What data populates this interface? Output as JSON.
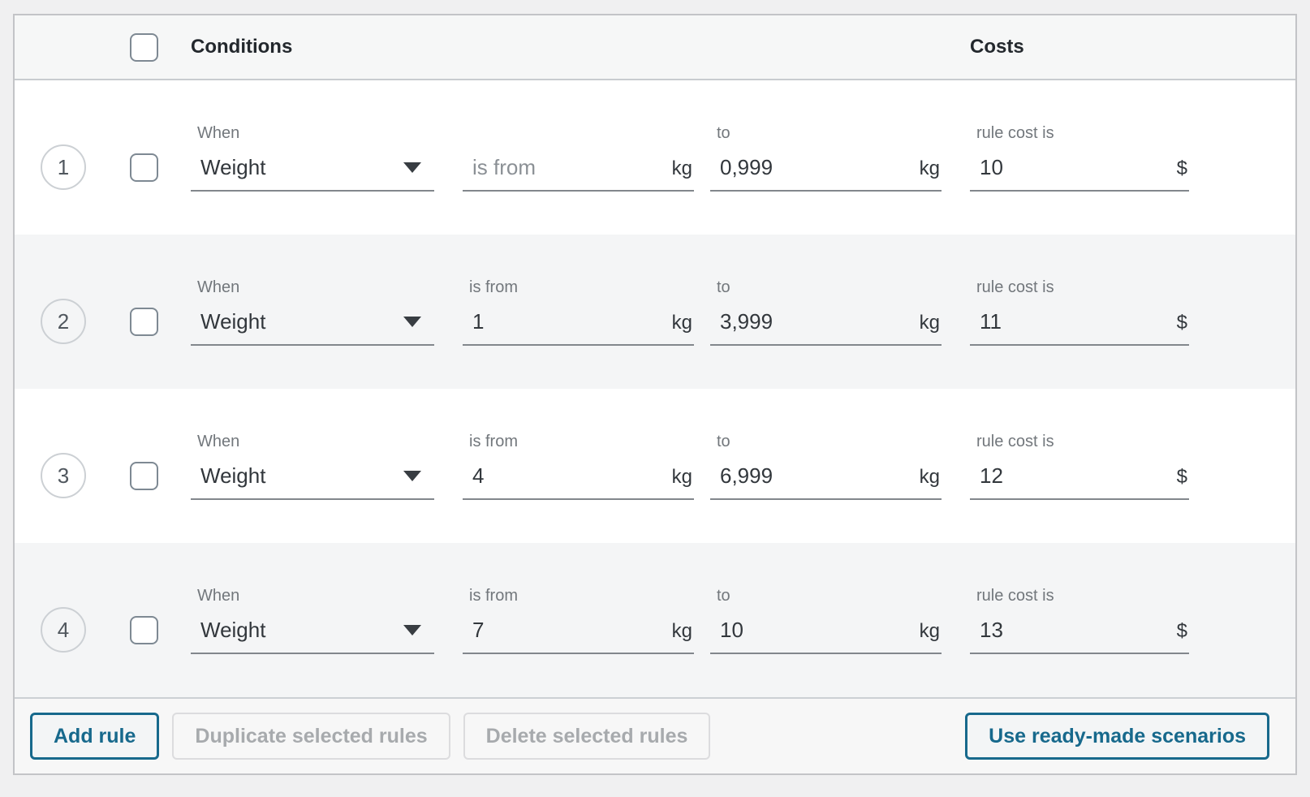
{
  "accent_color": "#17698c",
  "header": {
    "conditions_label": "Conditions",
    "costs_label": "Costs"
  },
  "rows": [
    {
      "number": "1",
      "when_label": "When",
      "condition_selected": "Weight",
      "from_label": "",
      "from_value": "",
      "from_placeholder": "is from",
      "from_suffix": "kg",
      "to_label": "to",
      "to_value": "0,999",
      "to_suffix": "kg",
      "cost_label": "rule cost is",
      "cost_value": "10",
      "cost_suffix": "$"
    },
    {
      "number": "2",
      "when_label": "When",
      "condition_selected": "Weight",
      "from_label": "is from",
      "from_value": "1",
      "from_placeholder": "",
      "from_suffix": "kg",
      "to_label": "to",
      "to_value": "3,999",
      "to_suffix": "kg",
      "cost_label": "rule cost is",
      "cost_value": "11",
      "cost_suffix": "$"
    },
    {
      "number": "3",
      "when_label": "When",
      "condition_selected": "Weight",
      "from_label": "is from",
      "from_value": "4",
      "from_placeholder": "",
      "from_suffix": "kg",
      "to_label": "to",
      "to_value": "6,999",
      "to_suffix": "kg",
      "cost_label": "rule cost is",
      "cost_value": "12",
      "cost_suffix": "$"
    },
    {
      "number": "4",
      "when_label": "When",
      "condition_selected": "Weight",
      "from_label": "is from",
      "from_value": "7",
      "from_placeholder": "",
      "from_suffix": "kg",
      "to_label": "to",
      "to_value": "10",
      "to_suffix": "kg",
      "cost_label": "rule cost is",
      "cost_value": "13",
      "cost_suffix": "$"
    }
  ],
  "footer": {
    "add_rule_label": "Add rule",
    "duplicate_label": "Duplicate selected rules",
    "delete_label": "Delete selected rules",
    "scenarios_label": "Use ready-made scenarios"
  }
}
